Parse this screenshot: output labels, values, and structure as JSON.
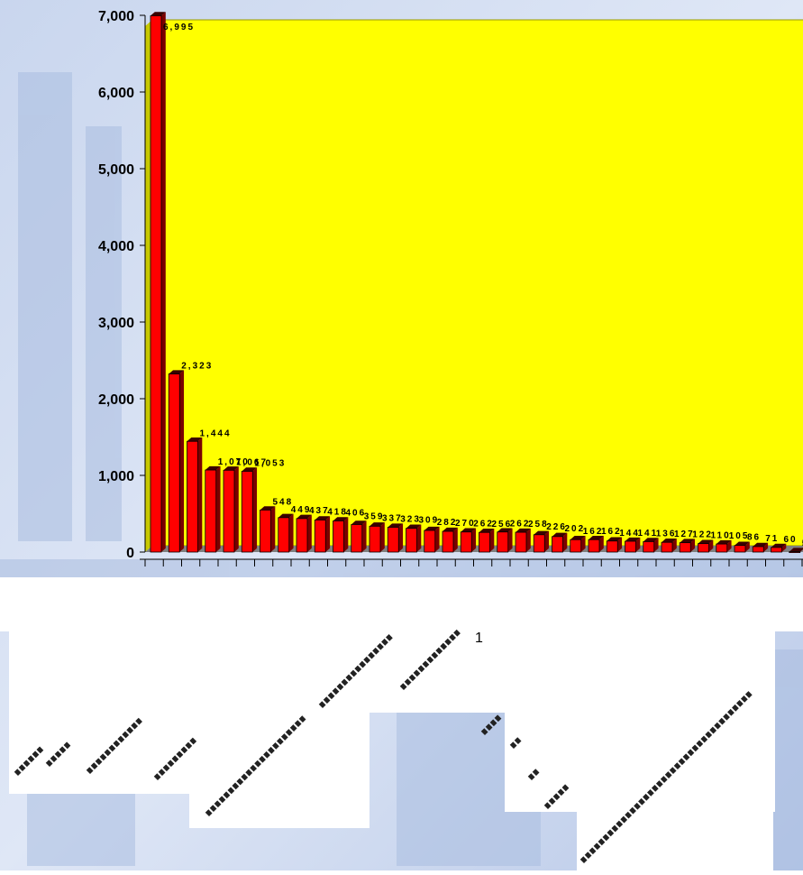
{
  "chart_data": {
    "type": "bar",
    "title": "",
    "xlabel": "",
    "ylabel": "",
    "ylim": [
      0,
      7000
    ],
    "yticks": [
      "7,000",
      "6,000",
      "5,000",
      "4,000",
      "3,000",
      "2,000",
      "1,000",
      "0"
    ],
    "ytick_values": [
      7000,
      6000,
      5000,
      4000,
      3000,
      2000,
      1000,
      0
    ],
    "grid": false,
    "legend": "none",
    "bar_color": "#ff0000",
    "plot_background": "#ffff00",
    "floor_color": "#808080",
    "values": [
      6995,
      2323,
      1444,
      1070,
      1067,
      1053,
      548,
      449,
      437,
      418,
      406,
      359,
      337,
      323,
      309,
      282,
      270,
      262,
      256,
      262,
      258,
      226,
      202,
      162,
      162,
      144,
      141,
      136,
      127,
      122,
      110,
      105,
      86,
      71,
      60,
      5
    ],
    "value_labels": [
      "6,995",
      "2,323",
      "1,444",
      "1,070",
      "1,067",
      "1,053",
      "548",
      "449",
      "437",
      "418",
      "406",
      "359",
      "337",
      "323",
      "309",
      "282",
      "270",
      "262",
      "256",
      "262",
      "258",
      "226",
      "202",
      "162",
      "162",
      "144",
      "141",
      "136",
      "127",
      "122",
      "110",
      "105",
      "86",
      "71",
      "60",
      "5"
    ],
    "category_fragment": "1"
  }
}
